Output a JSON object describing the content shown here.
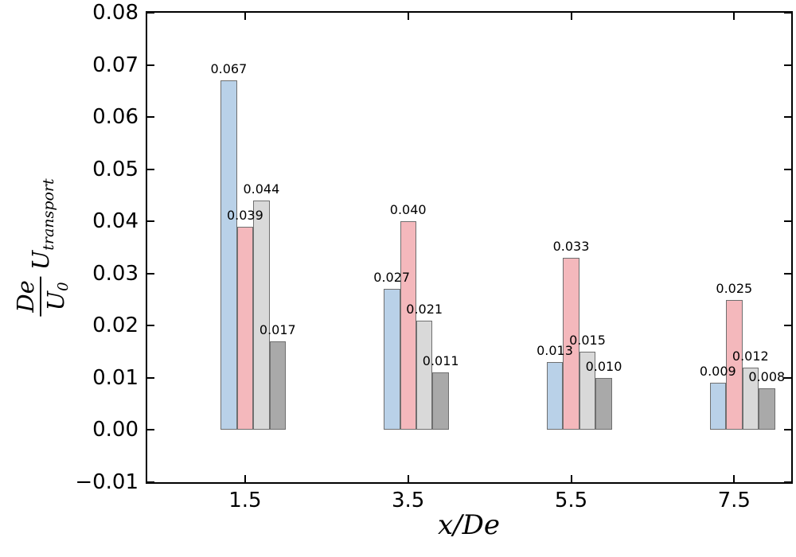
{
  "figure": {
    "background": "#ffffff",
    "title": "",
    "xlabel": "x/De",
    "ylabel": {
      "numerator": "De",
      "denominator_base": "U",
      "denominator_sub": "0",
      "factor_base": "U",
      "factor_sub": "transport"
    },
    "x_tick_labels": [
      "1.5",
      "3.5",
      "5.5",
      "7.5"
    ],
    "y_tick_labels": [
      "0.08",
      "0.07",
      "0.06",
      "0.05",
      "0.04",
      "0.03",
      "0.02",
      "0.01",
      "0.00",
      "−0.01"
    ]
  },
  "chart_data": {
    "type": "bar",
    "title": "",
    "xlabel": "x/De",
    "ylabel": "(De/U0)*U_transport",
    "categories": [
      1.5,
      3.5,
      5.5,
      7.5
    ],
    "series": [
      {
        "name": "series-light-blue",
        "color": "#b9d1e8",
        "values": [
          0.067,
          0.027,
          0.013,
          0.009
        ],
        "labels": [
          "0.067",
          "0.027",
          "0.013",
          "0.009"
        ]
      },
      {
        "name": "series-pink",
        "color": "#f4b8bc",
        "values": [
          0.039,
          0.04,
          0.033,
          0.025
        ],
        "labels": [
          "0.039",
          "0.040",
          "0.033",
          "0.025"
        ]
      },
      {
        "name": "series-light-gray",
        "color": "#d9d9d9",
        "values": [
          0.044,
          0.021,
          0.015,
          0.012
        ],
        "labels": [
          "0.044",
          "0.021",
          "0.015",
          "0.012"
        ]
      },
      {
        "name": "series-dark-gray",
        "color": "#a9a9a9",
        "values": [
          0.017,
          0.011,
          0.01,
          0.008
        ],
        "labels": [
          "0.017",
          "0.011",
          "0.010",
          "0.008"
        ]
      }
    ],
    "bar_edge_color": "#6f6f6f",
    "bar_width_units": 0.2,
    "bar_offsets_units": [
      -0.2,
      0.0,
      0.2,
      0.4
    ],
    "xlim": [
      0.3,
      8.2
    ],
    "ylim": [
      -0.01,
      0.08
    ],
    "y_tick_step": 0.01,
    "grid": false,
    "legend": null,
    "tick_direction": "in",
    "ticks_on_all_sides": true
  }
}
